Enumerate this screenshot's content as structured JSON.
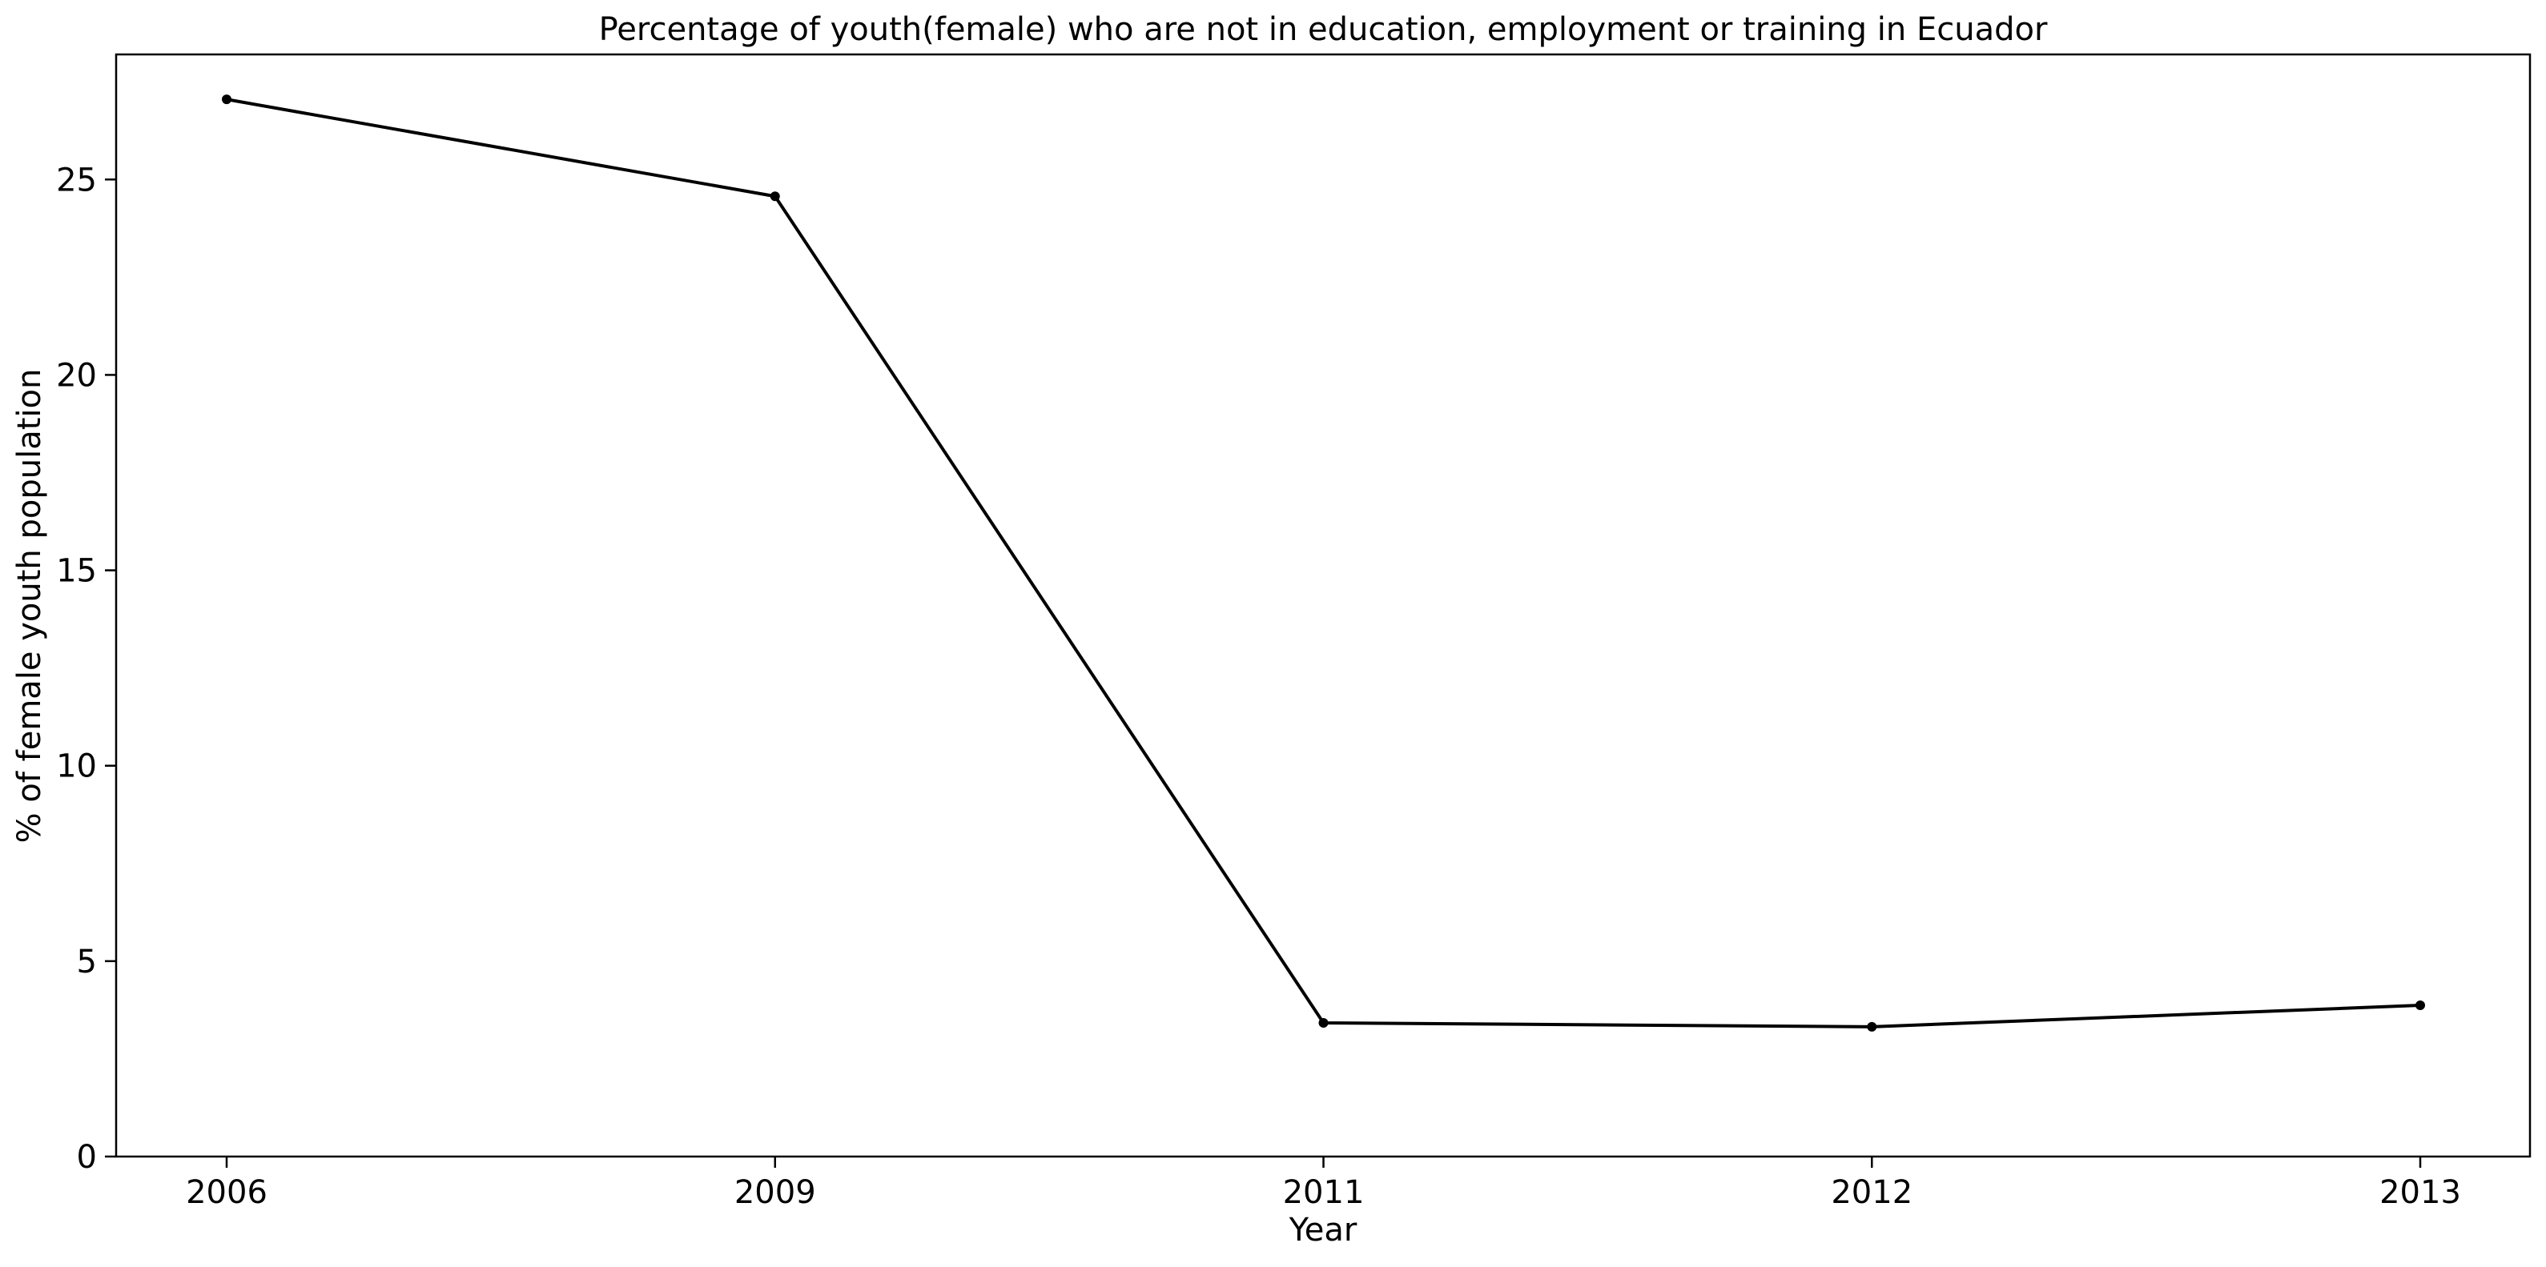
{
  "chart_data": {
    "type": "line",
    "title": "Percentage of youth(female) who are not in education, employment or training in Ecuador",
    "xlabel": "Year",
    "ylabel": "% of female youth population",
    "categories": [
      "2006",
      "2009",
      "2011",
      "2012",
      "2013"
    ],
    "series": [
      {
        "values": [
          27.05,
          24.57,
          3.42,
          3.32,
          3.87
        ],
        "color": "#000000",
        "marker": "dot"
      }
    ],
    "ylim": [
      0,
      28.2
    ],
    "yticks": [
      0,
      5,
      10,
      15,
      20,
      25
    ],
    "grid": false,
    "legend": "none"
  }
}
